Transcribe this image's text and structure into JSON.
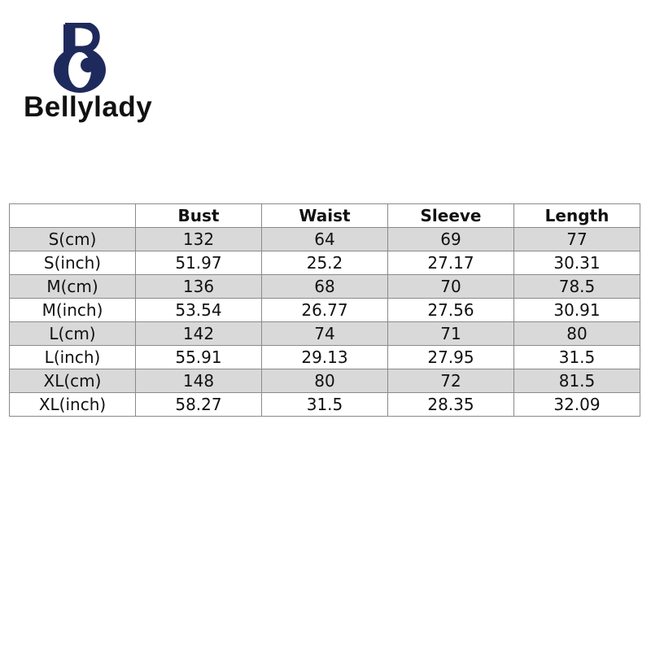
{
  "logo": {
    "monogram": "BO",
    "brand": "Bellylady",
    "color": "#1f2a5c"
  },
  "table": {
    "headers": [
      "",
      "Bust",
      "Waist",
      "Sleeve",
      "Length"
    ],
    "rows": [
      [
        "S(cm)",
        "132",
        "64",
        "69",
        "77"
      ],
      [
        "S(inch)",
        "51.97",
        "25.2",
        "27.17",
        "30.31"
      ],
      [
        "M(cm)",
        "136",
        "68",
        "70",
        "78.5"
      ],
      [
        "M(inch)",
        "53.54",
        "26.77",
        "27.56",
        "30.91"
      ],
      [
        "L(cm)",
        "142",
        "74",
        "71",
        "80"
      ],
      [
        "L(inch)",
        "55.91",
        "29.13",
        "27.95",
        "31.5"
      ],
      [
        "XL(cm)",
        "148",
        "80",
        "72",
        "81.5"
      ],
      [
        "XL(inch)",
        "58.27",
        "31.5",
        "28.35",
        "32.09"
      ]
    ]
  }
}
